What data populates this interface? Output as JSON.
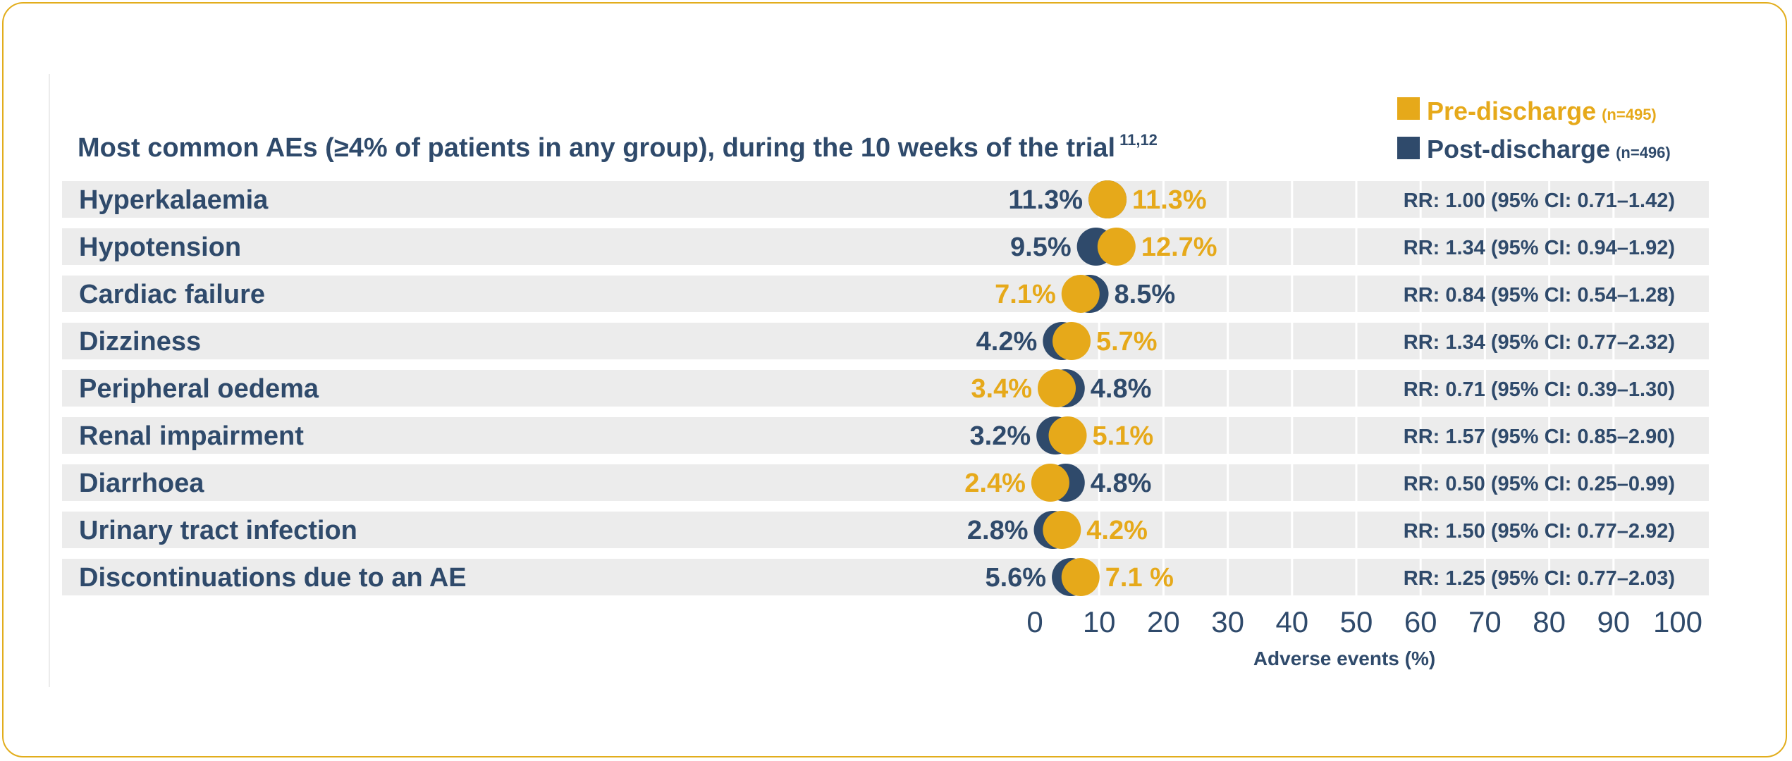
{
  "chart_data": {
    "type": "dot",
    "title": "Most common AEs (≥4% of patients in any group), during the 10 weeks of the trial",
    "title_superscript": "11,12",
    "xlabel": "Adverse events (%)",
    "xlim": [
      0,
      100
    ],
    "xticks": [
      "0",
      "10",
      "20",
      "30",
      "40",
      "50",
      "60",
      "70",
      "80",
      "90",
      "100"
    ],
    "legend_position": "top-right",
    "series": [
      {
        "name": "Pre-discharge",
        "n_label": "(n=495)",
        "color": "#E6A91A"
      },
      {
        "name": "Post-discharge",
        "n_label": "(n=496)",
        "color": "#2F4A6B"
      }
    ],
    "rows": [
      {
        "category": "Hyperkalaemia",
        "pre": 11.3,
        "post": 11.3,
        "pre_label": "11.3%",
        "post_label": "11.3%",
        "rr": "RR: 1.00 (95% CI: 0.71–1.42)"
      },
      {
        "category": "Hypotension",
        "pre": 12.7,
        "post": 9.5,
        "pre_label": "12.7%",
        "post_label": "9.5%",
        "rr": "RR: 1.34 (95% CI: 0.94–1.92)"
      },
      {
        "category": "Cardiac failure",
        "pre": 7.1,
        "post": 8.5,
        "pre_label": "7.1%",
        "post_label": "8.5%",
        "rr": "RR: 0.84 (95% CI: 0.54–1.28)"
      },
      {
        "category": "Dizziness",
        "pre": 5.7,
        "post": 4.2,
        "pre_label": "5.7%",
        "post_label": "4.2%",
        "rr": "RR: 1.34 (95% CI: 0.77–2.32)"
      },
      {
        "category": "Peripheral oedema",
        "pre": 3.4,
        "post": 4.8,
        "pre_label": "3.4%",
        "post_label": "4.8%",
        "rr": "RR: 0.71 (95% CI: 0.39–1.30)"
      },
      {
        "category": "Renal impairment",
        "pre": 5.1,
        "post": 3.2,
        "pre_label": "5.1%",
        "post_label": "3.2%",
        "rr": "RR: 1.57 (95% CI: 0.85–2.90)"
      },
      {
        "category": "Diarrhoea",
        "pre": 2.4,
        "post": 4.8,
        "pre_label": "2.4%",
        "post_label": "4.8%",
        "rr": "RR: 0.50 (95% CI: 0.25–0.99)"
      },
      {
        "category": "Urinary tract infection",
        "pre": 4.2,
        "post": 2.8,
        "pre_label": "4.2%",
        "post_label": "2.8%",
        "rr": "RR: 1.50 (95% CI: 0.77–2.92)"
      },
      {
        "category": "Discontinuations due to an AE",
        "pre": 7.1,
        "post": 5.6,
        "pre_label": "7.1 %",
        "post_label": "5.6%",
        "rr": "RR: 1.25 (95% CI: 0.77–2.03)"
      }
    ]
  }
}
